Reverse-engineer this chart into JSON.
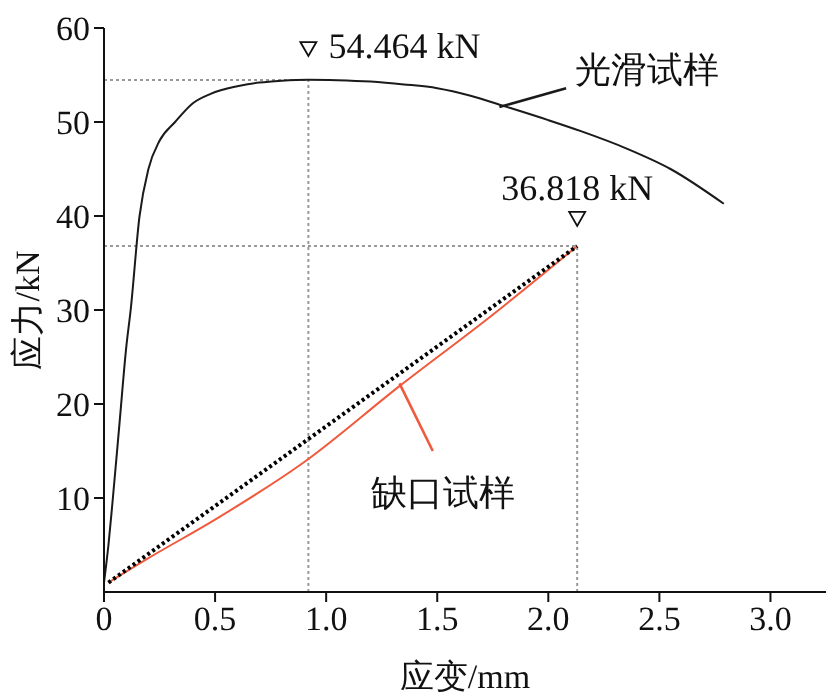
{
  "chart_data": {
    "type": "line",
    "xlabel": "应变/mm",
    "ylabel": "应力/kN",
    "xlim": [
      0,
      3.25
    ],
    "xticks": [
      0,
      0.5,
      {
        "value": 1,
        "label": "1.0"
      },
      1.5,
      {
        "value": 2,
        "label": "2.0"
      },
      2.5,
      {
        "value": 3,
        "label": "3.0"
      }
    ],
    "ylim": [
      0,
      60
    ],
    "yticks": [
      {
        "value": 10,
        "label": "10"
      },
      20,
      30,
      40,
      50,
      60
    ],
    "marker": "none",
    "series": [
      {
        "name": "光滑试样",
        "color": "#1a1a1a",
        "line_style": "solid",
        "x": [
          0,
          0.02,
          0.04,
          0.07,
          0.1,
          0.12,
          0.16,
          0.2,
          0.25,
          0.32,
          0.4,
          0.48,
          0.6,
          0.7,
          0.8,
          0.92,
          1.05,
          1.2,
          1.35,
          1.5,
          1.65,
          1.8,
          2.0,
          2.15,
          2.35,
          2.55,
          2.79
        ],
        "values": [
          1,
          5,
          10,
          18,
          26,
          30,
          40,
          45,
          48,
          50,
          52,
          53,
          53.8,
          54.2,
          54.4,
          54.5,
          54.45,
          54.3,
          54,
          53.6,
          52.8,
          51.7,
          50.2,
          49,
          47.2,
          45,
          41.3
        ]
      },
      {
        "name": "缺口试样",
        "color": "#f05a3c",
        "line_style": "solid",
        "x": [
          0.02,
          0.2,
          0.5,
          0.9,
          1.33,
          1.75,
          2.13
        ],
        "values": [
          1,
          3.6,
          7.7,
          13.8,
          21.9,
          29.5,
          36.8
        ]
      },
      {
        "color": "#000000",
        "line_style": "dotted",
        "x": [
          0.02,
          2.13
        ],
        "values": [
          1,
          36.8
        ]
      }
    ],
    "ref_lines": [
      {
        "axis": "x",
        "value": 0.92,
        "color": "#999999",
        "line_style": "dotted"
      },
      {
        "axis": "y",
        "value": 54.464,
        "color": "#999999",
        "line_style": "dotted"
      },
      {
        "axis": "x",
        "value": 2.13,
        "color": "#999999",
        "line_style": "dotted"
      },
      {
        "axis": "y",
        "value": 36.818,
        "color": "#999999",
        "line_style": "dotted"
      }
    ],
    "annotations": [
      {
        "text": "54.464 kN",
        "x": 0.92,
        "y": 54.464
      },
      {
        "text": "36.818 kN",
        "x": 2.13,
        "y": 36.818
      }
    ]
  }
}
